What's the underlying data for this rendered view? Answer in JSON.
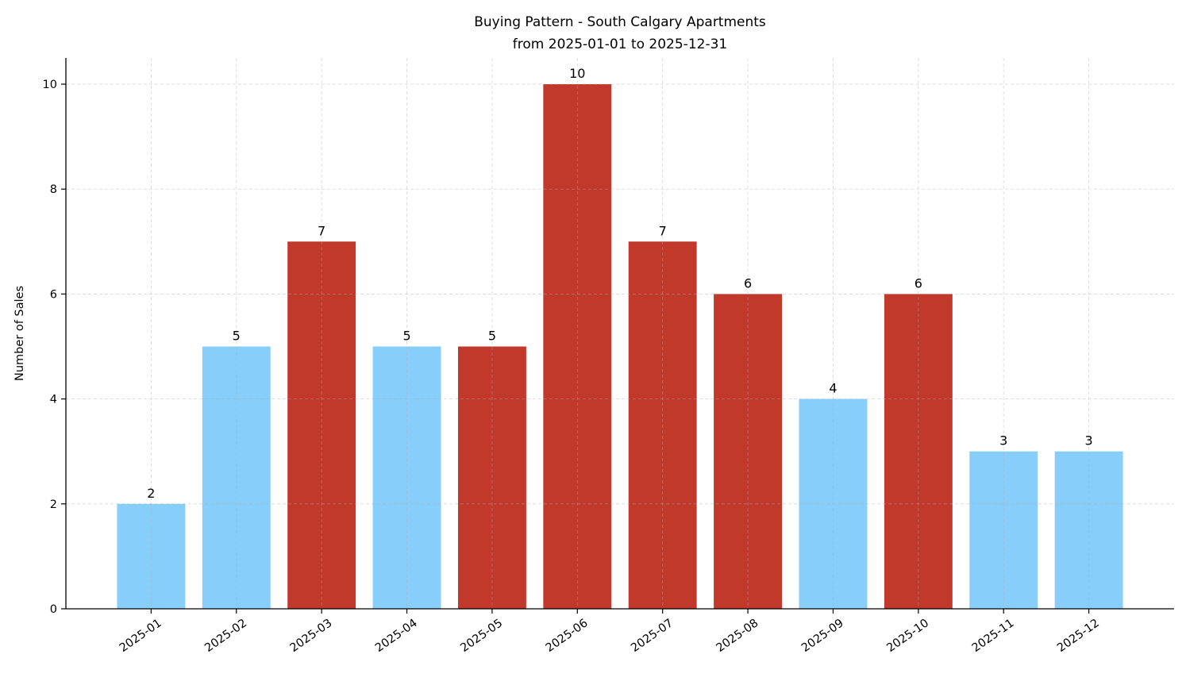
{
  "chart_data": {
    "type": "bar",
    "title": "Buying Pattern - South Calgary Apartments",
    "subtitle": "from 2025-01-01 to 2025-12-31",
    "xlabel": "",
    "ylabel": "Number of Sales",
    "categories": [
      "2025-01",
      "2025-02",
      "2025-03",
      "2025-04",
      "2025-05",
      "2025-06",
      "2025-07",
      "2025-08",
      "2025-09",
      "2025-10",
      "2025-11",
      "2025-12"
    ],
    "values": [
      2,
      5,
      7,
      5,
      5,
      10,
      7,
      6,
      4,
      6,
      3,
      3
    ],
    "bar_colors": [
      "#87CEFA",
      "#87CEFA",
      "#C0392B",
      "#87CEFA",
      "#C0392B",
      "#C0392B",
      "#C0392B",
      "#C0392B",
      "#87CEFA",
      "#C0392B",
      "#87CEFA",
      "#87CEFA"
    ],
    "ylim": [
      0,
      10.5
    ],
    "yticks": [
      0,
      2,
      4,
      6,
      8,
      10
    ],
    "grid": true,
    "data_labels": true,
    "xtick_rotation": 35
  }
}
